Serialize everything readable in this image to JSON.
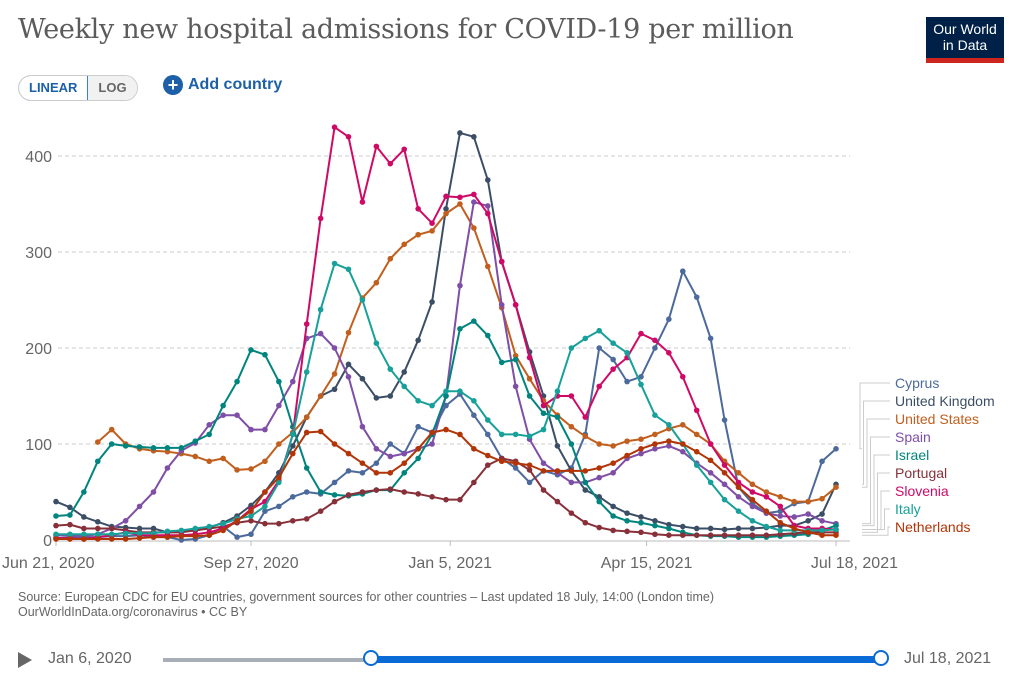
{
  "title": "Weekly new hospital admissions for COVID-19 per million",
  "logo": {
    "line1": "Our World",
    "line2": "in Data"
  },
  "controls": {
    "linear": "LINEAR",
    "log": "LOG",
    "add_country": "Add country",
    "add_icon": "plus-circle-icon"
  },
  "source": {
    "line1": "Source: European CDC for EU countries, government sources for other countries – Last updated 18 July, 14:00 (London time)",
    "line2": "OurWorldInData.org/coronavirus • CC BY"
  },
  "timeline": {
    "start": "Jan 6, 2020",
    "end": "Jul 18, 2021",
    "selected_start_fraction": 0.29,
    "selected_end_fraction": 1.0
  },
  "chart_data": {
    "type": "line",
    "title": "Weekly new hospital admissions for COVID-19 per million",
    "x_start": "Jun 21, 2020",
    "x_interval": "weekly",
    "x_ticks": [
      "Jun 21, 2020",
      "Sep 27, 2020",
      "Jan 5, 2021",
      "Apr 15, 2021",
      "Jul 18, 2021"
    ],
    "x_tick_index": [
      0,
      14,
      28.3,
      42.4,
      56
    ],
    "y_ticks": [
      0,
      100,
      200,
      300,
      400
    ],
    "ylim": [
      0,
      450
    ],
    "grid": true,
    "legend": "right",
    "series": [
      {
        "name": "Cyprus",
        "color": "#4c6a9c",
        "values": [
          2,
          2,
          2,
          2,
          2,
          3,
          3,
          3,
          4,
          4,
          5,
          3,
          3,
          0,
          1,
          5,
          14,
          3,
          6,
          30,
          35,
          45,
          50,
          48,
          60,
          72,
          70,
          80,
          100,
          90,
          118,
          112,
          140,
          152,
          130,
          110,
          85,
          75,
          60,
          72,
          68,
          75,
          110,
          200,
          188,
          165,
          170,
          200,
          230,
          280,
          253,
          210,
          125,
          55,
          38,
          28,
          30,
          38,
          40,
          82,
          95
        ]
      },
      {
        "name": "United Kingdom",
        "color": "#3c4e66",
        "values": [
          40,
          34,
          24,
          19,
          14,
          13,
          12,
          12,
          8,
          9,
          10,
          13,
          18,
          25,
          36,
          50,
          70,
          98,
          128,
          150,
          157,
          183,
          168,
          148,
          150,
          175,
          208,
          248,
          345,
          424,
          420,
          375,
          290,
          245,
          196,
          150,
          98,
          72,
          52,
          45,
          35,
          28,
          24,
          20,
          16,
          14,
          12,
          12,
          11,
          12,
          12,
          13,
          15,
          15,
          20,
          27,
          58
        ]
      },
      {
        "name": "United States",
        "color": "#c15f1e",
        "values": [
          102,
          115,
          100,
          95,
          93,
          92,
          90,
          87,
          82,
          85,
          73,
          74,
          82,
          100,
          112,
          128,
          150,
          173,
          216,
          252,
          268,
          293,
          308,
          318,
          322,
          340,
          350,
          325,
          285,
          242,
          192,
          168,
          145,
          130,
          118,
          108,
          100,
          98,
          103,
          105,
          110,
          116,
          120,
          110,
          100,
          82,
          70,
          58,
          50,
          45,
          40,
          40,
          43,
          55
        ]
      },
      {
        "name": "Spain",
        "color": "#7f4ea6",
        "values": [
          5,
          5,
          4,
          6,
          12,
          20,
          35,
          50,
          75,
          93,
          101,
          120,
          130,
          130,
          115,
          115,
          140,
          165,
          210,
          215,
          200,
          170,
          118,
          95,
          87,
          90,
          95,
          100,
          150,
          265,
          352,
          348,
          245,
          160,
          105,
          80,
          70,
          60,
          60,
          65,
          70,
          85,
          90,
          95,
          98,
          92,
          80,
          70,
          58,
          45,
          35,
          28,
          25,
          24,
          27,
          20,
          17
        ]
      },
      {
        "name": "Israel",
        "color": "#00847e",
        "values": [
          25,
          26,
          50,
          82,
          100,
          98,
          97,
          96,
          96,
          96,
          103,
          110,
          140,
          165,
          198,
          193,
          165,
          118,
          75,
          50,
          47,
          46,
          48,
          52,
          52,
          70,
          85,
          110,
          150,
          220,
          228,
          213,
          185,
          188,
          150,
          132,
          128,
          100,
          60,
          40,
          25,
          20,
          18,
          15,
          12,
          8,
          5,
          4,
          4,
          3,
          3,
          3,
          4,
          5,
          6,
          10,
          15
        ]
      },
      {
        "name": "Portugal",
        "color": "#883039",
        "values": [
          15,
          16,
          12,
          12,
          12,
          10,
          8,
          8,
          8,
          8,
          10,
          12,
          14,
          18,
          20,
          17,
          17,
          20,
          22,
          30,
          40,
          47,
          50,
          52,
          53,
          50,
          48,
          45,
          42,
          42,
          60,
          78,
          85,
          82,
          73,
          52,
          40,
          28,
          18,
          13,
          10,
          9,
          8,
          6,
          5,
          5,
          5,
          5,
          5,
          5,
          5,
          5,
          6,
          7,
          8,
          8,
          8
        ]
      },
      {
        "name": "Slovenia",
        "color": "#cf0a66",
        "values": [
          2,
          2,
          1,
          3,
          5,
          8,
          5,
          5,
          5,
          5,
          6,
          8,
          12,
          20,
          32,
          40,
          62,
          110,
          225,
          335,
          430,
          420,
          352,
          410,
          392,
          407,
          345,
          330,
          358,
          357,
          360,
          340,
          290,
          245,
          190,
          140,
          150,
          150,
          128,
          160,
          178,
          190,
          215,
          208,
          195,
          170,
          135,
          100,
          78,
          60,
          50,
          45,
          35,
          15,
          12,
          12,
          11
        ]
      },
      {
        "name": "Italy",
        "color": "#18a09a",
        "values": [
          6,
          6,
          6,
          6,
          6,
          7,
          7,
          7,
          9,
          10,
          12,
          14,
          17,
          22,
          25,
          35,
          60,
          110,
          175,
          240,
          288,
          282,
          250,
          205,
          178,
          160,
          145,
          140,
          155,
          155,
          145,
          125,
          110,
          110,
          108,
          115,
          155,
          200,
          210,
          218,
          205,
          195,
          162,
          130,
          120,
          100,
          78,
          60,
          42,
          30,
          20,
          14,
          10,
          10,
          10,
          10,
          11
        ]
      },
      {
        "name": "Netherlands",
        "color": "#b13507",
        "values": [
          1,
          1,
          1,
          1,
          1,
          1,
          2,
          3,
          3,
          4,
          4,
          5,
          10,
          20,
          30,
          50,
          65,
          90,
          112,
          113,
          100,
          90,
          80,
          70,
          70,
          80,
          95,
          112,
          115,
          110,
          95,
          88,
          82,
          80,
          78,
          72,
          72,
          72,
          72,
          75,
          80,
          88,
          95,
          100,
          103,
          100,
          92,
          83,
          70,
          55,
          42,
          30,
          18,
          12,
          8,
          5,
          5
        ]
      }
    ]
  }
}
